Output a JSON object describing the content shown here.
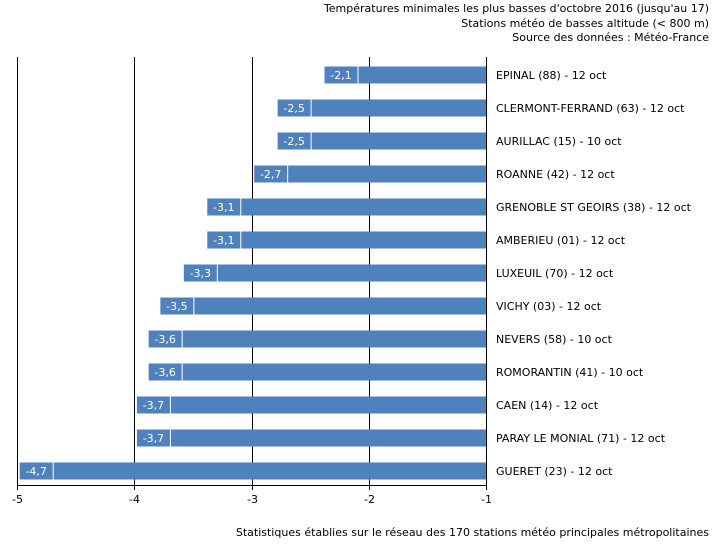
{
  "header": {
    "line1": "Températures minimales les plus basses d'octobre 2016 (jusqu'au 17)",
    "line2": "Stations météo de basses altitude (< 800 m)",
    "line3": "Source des données : Météo-France"
  },
  "footer": "Statistiques établies sur le réseau des 170 stations météo principales métropolitaines",
  "colors": {
    "bar": "#4f81bd",
    "label_box": "#4f81bd",
    "grid": "#000000"
  },
  "chart_data": {
    "type": "bar",
    "orientation": "horizontal",
    "categories": [
      "EPINAL (88) - 12 oct",
      "CLERMONT-FERRAND (63) - 12 oct",
      "AURILLAC (15) - 10 oct",
      "ROANNE (42) - 12 oct",
      "GRENOBLE ST GEOIRS (38) - 12 oct",
      "AMBERIEU (01) - 12 oct",
      "LUXEUIL (70) - 12 oct",
      "VICHY (03) - 12 oct",
      "NEVERS (58) - 10 oct",
      "ROMORANTIN (41) - 10 oct",
      "CAEN (14) - 12 oct",
      "PARAY LE MONIAL (71) - 12 oct",
      "GUERET (23) - 12 oct"
    ],
    "values": [
      -2.1,
      -2.5,
      -2.5,
      -2.7,
      -3.1,
      -3.1,
      -3.3,
      -3.5,
      -3.6,
      -3.6,
      -3.7,
      -3.7,
      -4.7
    ],
    "value_labels": [
      "-2,1",
      "-2,5",
      "-2,5",
      "-2,7",
      "-3,1",
      "-3,1",
      "-3,3",
      "-3,5",
      "-3,6",
      "-3,6",
      "-3,7",
      "-3,7",
      "-4,7"
    ],
    "xlim": [
      -5,
      -1
    ],
    "xticks": [
      -5,
      -4,
      -3,
      -2,
      -1
    ],
    "xtick_labels": [
      "-5",
      "-4",
      "-3",
      "-2",
      "-1"
    ],
    "grid": "vertical",
    "title": "Températures minimales les plus basses d'octobre 2016 (jusqu'au 17)",
    "xlabel": "",
    "ylabel": ""
  }
}
